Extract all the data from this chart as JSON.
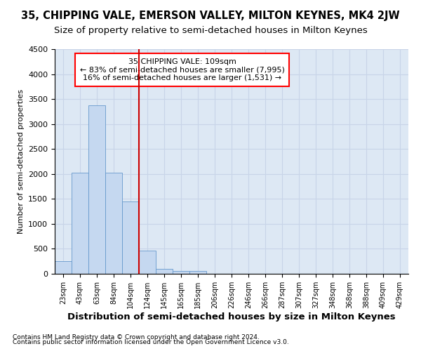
{
  "title_line1": "35, CHIPPING VALE, EMERSON VALLEY, MILTON KEYNES, MK4 2JW",
  "title_line2": "Size of property relative to semi-detached houses in Milton Keynes",
  "xlabel": "Distribution of semi-detached houses by size in Milton Keynes",
  "ylabel": "Number of semi-detached properties",
  "footer1": "Contains HM Land Registry data © Crown copyright and database right 2024.",
  "footer2": "Contains public sector information licensed under the Open Government Licence v3.0.",
  "bar_labels": [
    "23sqm",
    "43sqm",
    "63sqm",
    "84sqm",
    "104sqm",
    "124sqm",
    "145sqm",
    "165sqm",
    "185sqm",
    "206sqm",
    "226sqm",
    "246sqm",
    "266sqm",
    "287sqm",
    "307sqm",
    "327sqm",
    "348sqm",
    "368sqm",
    "388sqm",
    "409sqm",
    "429sqm"
  ],
  "bar_values": [
    250,
    2020,
    3370,
    2020,
    1450,
    460,
    100,
    60,
    50,
    0,
    0,
    0,
    0,
    0,
    0,
    0,
    0,
    0,
    0,
    0,
    0
  ],
  "bar_color": "#c5d8f0",
  "bar_edge_color": "#6699cc",
  "red_line_x": 4.5,
  "annotation_text": "35 CHIPPING VALE: 109sqm\n← 83% of semi-detached houses are smaller (7,995)\n16% of semi-detached houses are larger (1,531) →",
  "annotation_box_color": "white",
  "annotation_box_edge_color": "red",
  "red_line_color": "#cc0000",
  "ylim": [
    0,
    4500
  ],
  "yticks": [
    0,
    500,
    1000,
    1500,
    2000,
    2500,
    3000,
    3500,
    4000,
    4500
  ],
  "grid_color": "#c8d4e8",
  "background_color": "#dde8f4",
  "title_fontsize": 10.5,
  "subtitle_fontsize": 9.5,
  "ylabel_fontsize": 8,
  "xlabel_fontsize": 9.5,
  "tick_fontsize": 7,
  "ytick_fontsize": 8,
  "annotation_fontsize": 8,
  "footer_fontsize": 6.5
}
